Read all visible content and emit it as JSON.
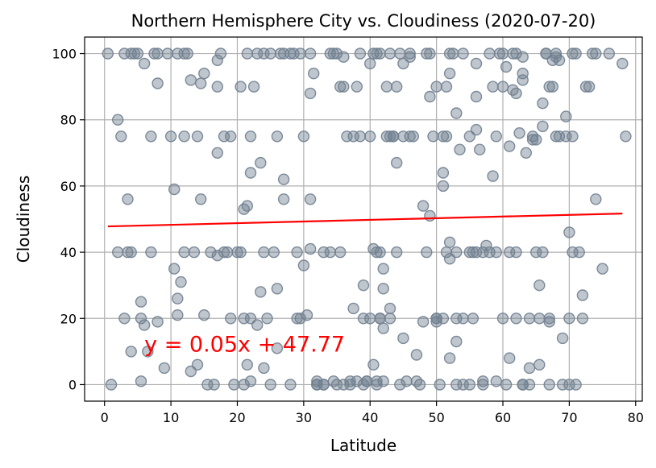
{
  "chart_data": {
    "type": "scatter",
    "title": "Northern Hemisphere City vs. Cloudiness (2020-07-20)",
    "xlabel": "Latitude",
    "ylabel": "Cloudiness",
    "xlim": [
      -3,
      81
    ],
    "ylim": [
      -5,
      105
    ],
    "xticks": [
      0,
      10,
      20,
      30,
      40,
      50,
      60,
      70,
      80
    ],
    "yticks": [
      0,
      20,
      40,
      60,
      80,
      100
    ],
    "grid": true,
    "regression": {
      "equation": "y = 0.05x + 47.77",
      "slope": 0.05,
      "intercept": 47.77,
      "x_range": [
        0.5,
        78
      ],
      "color": "#ff0000",
      "annotation_at": [
        6,
        10
      ]
    },
    "point_color": "#708090",
    "point_face_opacity": 0.45,
    "points": [
      [
        0.5,
        100
      ],
      [
        1,
        0
      ],
      [
        2,
        80
      ],
      [
        2,
        40
      ],
      [
        2.5,
        75
      ],
      [
        3,
        20
      ],
      [
        3,
        100
      ],
      [
        3.5,
        40
      ],
      [
        3.5,
        56
      ],
      [
        4,
        100
      ],
      [
        4,
        40
      ],
      [
        4,
        10
      ],
      [
        4.5,
        100
      ],
      [
        5,
        100
      ],
      [
        5.5,
        25
      ],
      [
        5.5,
        20
      ],
      [
        5.5,
        1
      ],
      [
        6,
        18
      ],
      [
        6,
        97
      ],
      [
        6.5,
        10
      ],
      [
        7,
        40
      ],
      [
        7,
        75
      ],
      [
        7.5,
        100
      ],
      [
        8,
        100
      ],
      [
        8,
        91
      ],
      [
        8,
        19
      ],
      [
        9,
        5
      ],
      [
        9.5,
        100
      ],
      [
        10,
        75
      ],
      [
        10.5,
        59
      ],
      [
        10.5,
        35
      ],
      [
        11,
        100
      ],
      [
        11,
        26
      ],
      [
        11,
        21
      ],
      [
        11.5,
        31
      ],
      [
        12,
        100
      ],
      [
        12,
        40
      ],
      [
        12,
        75
      ],
      [
        12.5,
        100
      ],
      [
        13,
        92
      ],
      [
        13,
        4
      ],
      [
        13.5,
        40
      ],
      [
        14,
        75
      ],
      [
        14,
        6
      ],
      [
        14.5,
        56
      ],
      [
        14.5,
        91
      ],
      [
        15,
        94
      ],
      [
        15,
        21
      ],
      [
        15.5,
        0
      ],
      [
        16,
        40
      ],
      [
        16.5,
        0
      ],
      [
        17,
        39
      ],
      [
        17,
        70
      ],
      [
        17,
        90
      ],
      [
        17,
        98
      ],
      [
        17.5,
        100
      ],
      [
        18,
        40
      ],
      [
        18,
        75
      ],
      [
        18.5,
        40
      ],
      [
        19,
        20
      ],
      [
        19,
        75
      ],
      [
        19.5,
        0
      ],
      [
        20,
        40
      ],
      [
        20.5,
        90
      ],
      [
        20.5,
        40
      ],
      [
        21,
        53
      ],
      [
        21,
        20
      ],
      [
        21,
        0
      ],
      [
        21.5,
        100
      ],
      [
        21.5,
        54
      ],
      [
        21.5,
        6
      ],
      [
        22,
        75
      ],
      [
        22,
        64
      ],
      [
        22,
        20
      ],
      [
        22,
        1
      ],
      [
        22.5,
        90
      ],
      [
        23,
        18
      ],
      [
        23,
        100
      ],
      [
        23.5,
        67
      ],
      [
        23.5,
        28
      ],
      [
        24,
        100
      ],
      [
        24,
        40
      ],
      [
        24,
        5
      ],
      [
        24.5,
        20
      ],
      [
        25,
        0
      ],
      [
        25,
        100
      ],
      [
        25.5,
        40
      ],
      [
        26,
        29
      ],
      [
        26,
        11
      ],
      [
        26,
        75
      ],
      [
        26.5,
        100
      ],
      [
        27,
        62
      ],
      [
        27,
        56
      ],
      [
        27,
        100
      ],
      [
        28,
        0
      ],
      [
        28,
        100
      ],
      [
        28.5,
        100
      ],
      [
        29,
        40
      ],
      [
        29,
        20
      ],
      [
        29.5,
        20
      ],
      [
        29.5,
        100
      ],
      [
        30,
        36
      ],
      [
        30,
        75
      ],
      [
        30.5,
        21
      ],
      [
        31,
        88
      ],
      [
        31,
        41
      ],
      [
        31,
        56
      ],
      [
        31,
        100
      ],
      [
        31.5,
        94
      ],
      [
        32,
        0
      ],
      [
        32,
        0
      ],
      [
        32,
        1
      ],
      [
        33,
        40
      ],
      [
        33,
        0
      ],
      [
        33,
        0
      ],
      [
        34,
        40
      ],
      [
        34,
        100
      ],
      [
        34.5,
        1
      ],
      [
        34.5,
        100
      ],
      [
        35,
        0
      ],
      [
        35,
        100
      ],
      [
        35.5,
        90
      ],
      [
        35.5,
        40
      ],
      [
        36,
        99
      ],
      [
        36,
        90
      ],
      [
        36,
        0
      ],
      [
        36.5,
        75
      ],
      [
        37,
        1
      ],
      [
        37,
        0
      ],
      [
        37.5,
        23
      ],
      [
        37.5,
        75
      ],
      [
        38,
        90
      ],
      [
        38,
        1
      ],
      [
        38.5,
        100
      ],
      [
        38.5,
        75
      ],
      [
        39,
        20
      ],
      [
        39,
        0
      ],
      [
        39,
        30
      ],
      [
        39.5,
        1
      ],
      [
        39.5,
        1
      ],
      [
        40,
        97
      ],
      [
        40,
        75
      ],
      [
        40,
        20
      ],
      [
        40.5,
        100
      ],
      [
        40.5,
        41
      ],
      [
        40.5,
        6
      ],
      [
        41,
        100
      ],
      [
        41,
        40
      ],
      [
        41,
        1
      ],
      [
        41,
        0
      ],
      [
        41.5,
        100
      ],
      [
        41.5,
        40
      ],
      [
        41.5,
        20
      ],
      [
        41.5,
        20
      ],
      [
        42,
        29
      ],
      [
        42,
        35
      ],
      [
        42,
        17
      ],
      [
        42,
        1
      ],
      [
        42.5,
        75
      ],
      [
        42.5,
        90
      ],
      [
        43,
        23
      ],
      [
        43,
        20
      ],
      [
        43,
        100
      ],
      [
        43,
        75
      ],
      [
        43.5,
        75
      ],
      [
        43.5,
        75
      ],
      [
        44,
        40
      ],
      [
        44,
        67
      ],
      [
        44,
        90
      ],
      [
        44.5,
        0
      ],
      [
        44.5,
        100
      ],
      [
        45,
        14
      ],
      [
        45,
        75
      ],
      [
        45,
        97
      ],
      [
        45.5,
        1
      ],
      [
        46,
        99
      ],
      [
        46,
        100
      ],
      [
        46,
        75
      ],
      [
        46.5,
        75
      ],
      [
        47,
        9
      ],
      [
        47,
        1
      ],
      [
        47.5,
        0
      ],
      [
        48,
        19
      ],
      [
        48,
        54
      ],
      [
        48.5,
        100
      ],
      [
        48.5,
        40
      ],
      [
        49,
        100
      ],
      [
        49,
        51
      ],
      [
        49,
        87
      ],
      [
        49.5,
        75
      ],
      [
        50,
        90
      ],
      [
        50,
        20
      ],
      [
        50,
        19
      ],
      [
        50,
        20
      ],
      [
        50.5,
        0
      ],
      [
        51,
        75
      ],
      [
        51,
        20
      ],
      [
        51,
        60
      ],
      [
        51,
        64
      ],
      [
        51.5,
        40
      ],
      [
        51.5,
        90
      ],
      [
        51.5,
        75
      ],
      [
        52,
        100
      ],
      [
        52,
        94
      ],
      [
        52,
        43
      ],
      [
        52,
        38
      ],
      [
        52,
        8
      ],
      [
        52.5,
        100
      ],
      [
        53,
        82
      ],
      [
        53,
        40
      ],
      [
        53,
        20
      ],
      [
        53,
        0
      ],
      [
        53,
        13
      ],
      [
        53.5,
        71
      ],
      [
        54,
        20
      ],
      [
        54,
        0
      ],
      [
        54,
        100
      ],
      [
        55,
        75
      ],
      [
        55,
        40
      ],
      [
        55,
        0
      ],
      [
        55.5,
        40
      ],
      [
        55.5,
        20
      ],
      [
        56,
        77
      ],
      [
        56,
        87
      ],
      [
        56,
        97
      ],
      [
        56,
        40
      ],
      [
        56.5,
        71
      ],
      [
        57,
        40
      ],
      [
        57,
        0
      ],
      [
        57,
        1
      ],
      [
        57.5,
        42
      ],
      [
        58,
        100
      ],
      [
        58,
        40
      ],
      [
        58.5,
        90
      ],
      [
        58.5,
        63
      ],
      [
        59,
        75
      ],
      [
        59,
        40
      ],
      [
        59,
        1
      ],
      [
        59.5,
        100
      ],
      [
        60,
        90
      ],
      [
        60,
        100
      ],
      [
        60,
        20
      ],
      [
        60.5,
        96
      ],
      [
        60.5,
        0
      ],
      [
        61,
        40
      ],
      [
        61,
        8
      ],
      [
        61,
        72
      ],
      [
        61.5,
        89
      ],
      [
        61.5,
        100
      ],
      [
        62,
        100
      ],
      [
        62,
        40
      ],
      [
        62,
        20
      ],
      [
        62,
        88
      ],
      [
        62.5,
        76
      ],
      [
        63,
        92
      ],
      [
        63,
        94
      ],
      [
        63,
        99
      ],
      [
        63,
        0
      ],
      [
        63,
        0
      ],
      [
        63.5,
        70
      ],
      [
        64,
        20
      ],
      [
        64,
        0
      ],
      [
        64,
        5
      ],
      [
        64.5,
        75
      ],
      [
        64.5,
        74
      ],
      [
        65,
        40
      ],
      [
        65,
        74
      ],
      [
        65.5,
        30
      ],
      [
        65.5,
        20
      ],
      [
        65.5,
        6
      ],
      [
        66,
        40
      ],
      [
        66,
        85
      ],
      [
        66,
        78
      ],
      [
        66.5,
        100
      ],
      [
        66.5,
        100
      ],
      [
        67,
        90
      ],
      [
        67,
        20
      ],
      [
        67,
        19
      ],
      [
        67,
        0
      ],
      [
        67.5,
        90
      ],
      [
        67.5,
        98
      ],
      [
        68,
        100
      ],
      [
        68,
        99
      ],
      [
        68,
        75
      ],
      [
        68.5,
        98
      ],
      [
        68.5,
        75
      ],
      [
        69,
        14
      ],
      [
        69,
        0
      ],
      [
        69.5,
        75
      ],
      [
        69.5,
        81
      ],
      [
        70,
        46
      ],
      [
        70,
        20
      ],
      [
        70,
        0
      ],
      [
        70.5,
        100
      ],
      [
        70.5,
        75
      ],
      [
        70.5,
        40
      ],
      [
        71,
        0
      ],
      [
        71,
        100
      ],
      [
        71.5,
        40
      ],
      [
        72,
        20
      ],
      [
        72,
        27
      ],
      [
        72.5,
        90
      ],
      [
        73,
        90
      ],
      [
        73.5,
        100
      ],
      [
        74,
        100
      ],
      [
        74,
        56
      ],
      [
        75,
        35
      ],
      [
        76,
        100
      ],
      [
        78,
        97
      ],
      [
        78.5,
        75
      ]
    ]
  }
}
